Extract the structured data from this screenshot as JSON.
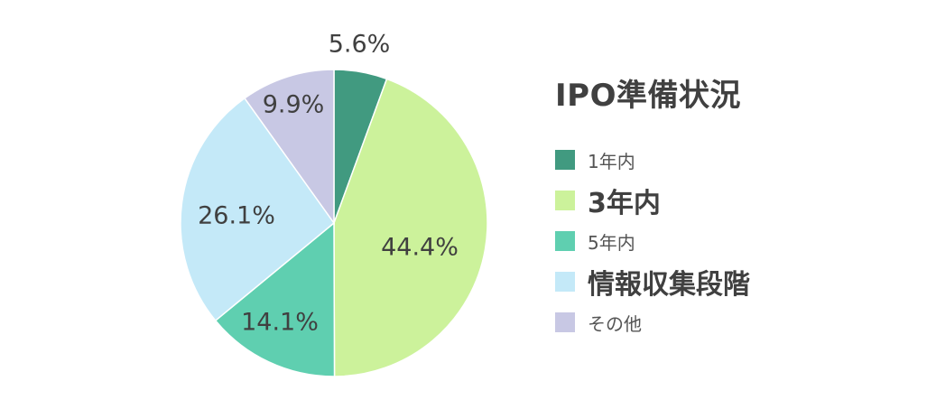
{
  "chart_data": {
    "type": "pie",
    "title": "IPO準備状況",
    "series": [
      {
        "name": "1年内",
        "value": 5.6,
        "label": "5.6%",
        "color": "#419a80",
        "emphasis": false
      },
      {
        "name": "3年内",
        "value": 44.4,
        "label": "44.4%",
        "color": "#ccf29b",
        "emphasis": true
      },
      {
        "name": "5年内",
        "value": 14.1,
        "label": "14.1%",
        "color": "#5fcfb0",
        "emphasis": false
      },
      {
        "name": "情報収集段階",
        "value": 26.1,
        "label": "26.1%",
        "color": "#c4e9f8",
        "emphasis": true
      },
      {
        "name": "その他",
        "value": 9.9,
        "label": "9.9%",
        "color": "#c8c8e4",
        "emphasis": false
      }
    ],
    "start_angle": "12 o'clock",
    "direction": "clockwise",
    "legend_position": "right"
  }
}
